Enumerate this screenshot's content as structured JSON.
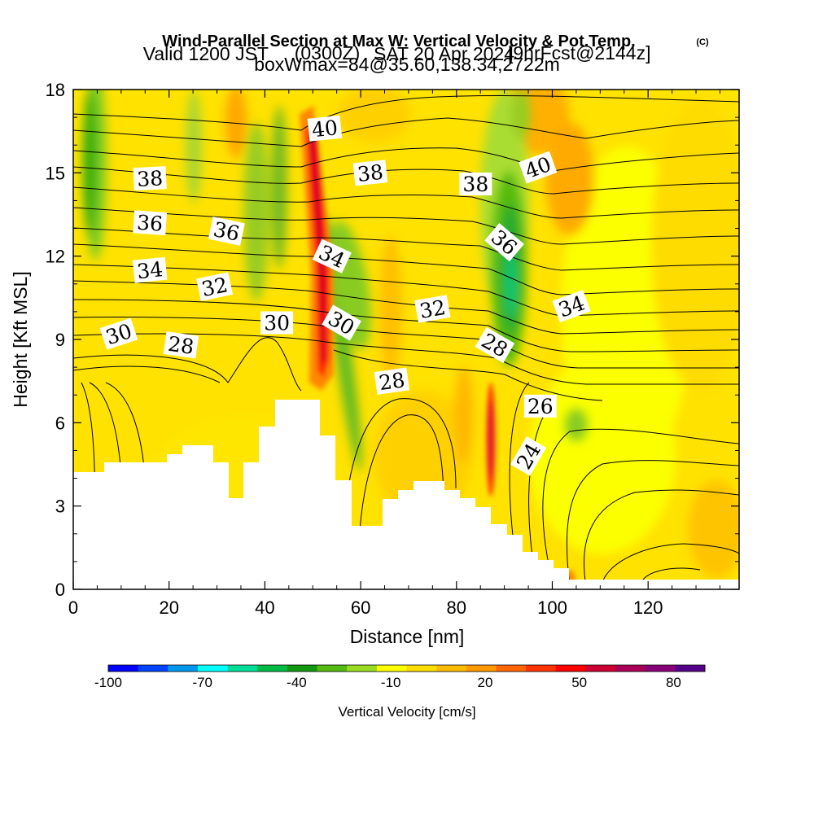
{
  "header": {
    "title": "Wind-Parallel Section at Max W: Vertical Velocity & Pot.Temp.",
    "copyright": "(C)",
    "valid_prefix": "Valid 1200 JST",
    "valid_utc": "(0300Z)",
    "valid_date": "SAT 20 Apr 2024",
    "forecast_tag": "[9hrFcst@2144z]",
    "box_info": "boxWmax=84@35.60,138.34,2722m"
  },
  "chart_data": {
    "type": "heatmap",
    "title": "Wind-Parallel Section at Max W: Vertical Velocity & Pot.Temp.",
    "xlabel": "Distance [nm]",
    "ylabel": "Height [Kft MSL]",
    "xlim": [
      0,
      139
    ],
    "ylim": [
      0,
      18
    ],
    "x_ticks": [
      0,
      20,
      40,
      60,
      80,
      100,
      120
    ],
    "y_ticks": [
      0,
      3,
      6,
      9,
      12,
      15,
      18
    ],
    "colorbar": {
      "label": "Vertical Velocity [cm/s]",
      "range": [
        -100,
        90
      ],
      "tick_labels": [
        "-100",
        "-70",
        "-40",
        "-10",
        "20",
        "50",
        "80"
      ],
      "tick_values": [
        -100,
        -70,
        -40,
        -10,
        20,
        50,
        80
      ],
      "colors": [
        "#0000ff",
        "#0044ff",
        "#0099ee",
        "#00ffff",
        "#00dd99",
        "#00bb44",
        "#119911",
        "#55bb11",
        "#99dd22",
        "#ffff00",
        "#ffdd00",
        "#ffbb00",
        "#ff9900",
        "#ff6600",
        "#ff3300",
        "#ff0000",
        "#cc0033",
        "#aa0055",
        "#880077",
        "#550088"
      ]
    },
    "contour_labels": [
      {
        "text": "40",
        "x": 52.5,
        "y": 16.6
      },
      {
        "text": "38",
        "x": 16,
        "y": 14.8
      },
      {
        "text": "38",
        "x": 62,
        "y": 15.0
      },
      {
        "text": "38",
        "x": 84,
        "y": 14.6
      },
      {
        "text": "40",
        "x": 97,
        "y": 15.2
      },
      {
        "text": "36",
        "x": 16,
        "y": 13.2
      },
      {
        "text": "36",
        "x": 32,
        "y": 12.9
      },
      {
        "text": "36",
        "x": 90,
        "y": 12.5
      },
      {
        "text": "34",
        "x": 16,
        "y": 11.5
      },
      {
        "text": "34",
        "x": 54,
        "y": 12.0
      },
      {
        "text": "34",
        "x": 104,
        "y": 10.2
      },
      {
        "text": "32",
        "x": 29.5,
        "y": 10.9
      },
      {
        "text": "32",
        "x": 75,
        "y": 10.1
      },
      {
        "text": "30",
        "x": 9.5,
        "y": 9.2
      },
      {
        "text": "30",
        "x": 42.5,
        "y": 9.6
      },
      {
        "text": "30",
        "x": 56,
        "y": 9.6
      },
      {
        "text": "28",
        "x": 22.5,
        "y": 8.8
      },
      {
        "text": "28",
        "x": 66.5,
        "y": 7.5
      },
      {
        "text": "28",
        "x": 88,
        "y": 8.8
      },
      {
        "text": "26",
        "x": 97.5,
        "y": 6.6
      },
      {
        "text": "24",
        "x": 95,
        "y": 4.8
      }
    ]
  }
}
